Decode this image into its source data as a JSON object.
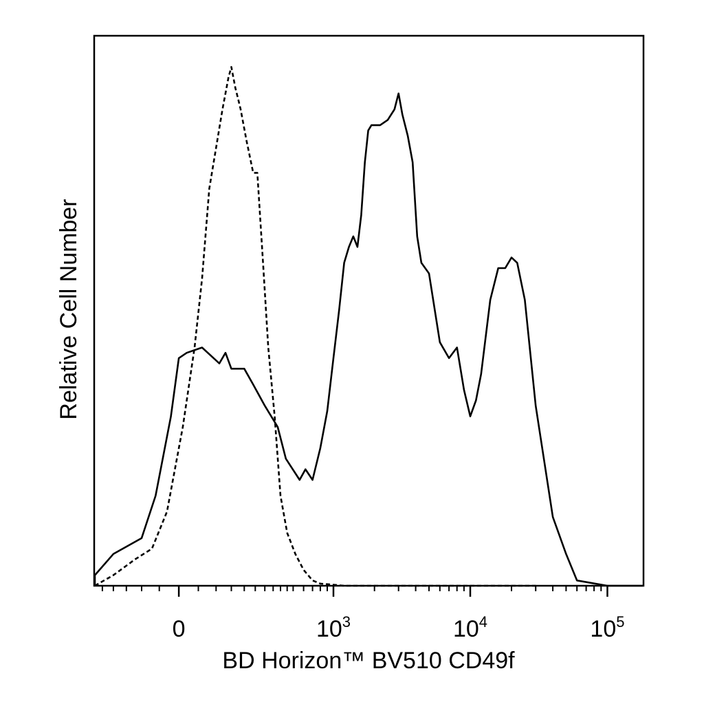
{
  "chart_data": {
    "type": "line",
    "xlabel": "BD Horizon™ BV510 CD49f",
    "ylabel": "Relative Cell Number",
    "x_scale": "biexponential",
    "x_ticks": [
      {
        "value": 0,
        "label": "0",
        "exp": ""
      },
      {
        "value": 1000,
        "label": "10",
        "exp": "3"
      },
      {
        "value": 10000,
        "label": "10",
        "exp": "4"
      },
      {
        "value": 100000,
        "label": "10",
        "exp": "5"
      }
    ],
    "ylim": [
      0,
      100
    ],
    "grid": false,
    "series": [
      {
        "style": "solid",
        "x": [
          -480,
          -300,
          -200,
          -100,
          -60,
          -20,
          0,
          20,
          60,
          110,
          130,
          150,
          200,
          240,
          300,
          380,
          440,
          560,
          620,
          700,
          800,
          900,
          1000,
          1100,
          1200,
          1300,
          1400,
          1500,
          1600,
          1700,
          1800,
          1900,
          2200,
          2500,
          2800,
          3000,
          3200,
          3500,
          3800,
          4100,
          4400,
          5000,
          6000,
          7000,
          8000,
          9000,
          10000,
          11000,
          12000,
          14000,
          16000,
          18000,
          20000,
          22000,
          25000,
          30000,
          40000,
          50000,
          60000,
          100000,
          250000
        ],
        "y": [
          0,
          2,
          6,
          9,
          17,
          32,
          43,
          44,
          45,
          42,
          44,
          41,
          41,
          38,
          34,
          30,
          24,
          20,
          22,
          20,
          26,
          33,
          43,
          52,
          61,
          64,
          66,
          64,
          70,
          80,
          86,
          87,
          87,
          88,
          90,
          93,
          89,
          85,
          80,
          66,
          61,
          59,
          46,
          43,
          45,
          37,
          32,
          35,
          40,
          54,
          60,
          60,
          62,
          61,
          54,
          34,
          13,
          6,
          1,
          0,
          0
        ]
      },
      {
        "style": "dashed",
        "x": [
          -480,
          -350,
          -200,
          -120,
          -70,
          -30,
          10,
          40,
          60,
          80,
          120,
          140,
          150,
          165,
          175,
          185,
          210,
          240,
          260,
          290,
          320,
          360,
          400,
          450,
          520,
          600,
          700,
          800,
          1000,
          1200,
          1500,
          2000,
          3000,
          5000,
          10000,
          30000
        ],
        "y": [
          0,
          0,
          2,
          5,
          7,
          14,
          30,
          45,
          58,
          75,
          90,
          96,
          98,
          94,
          92,
          90,
          84,
          78,
          78,
          61,
          45,
          32,
          17,
          10,
          6,
          3,
          1,
          0.4,
          0.2,
          0,
          0,
          0,
          0,
          0,
          0,
          0
        ]
      }
    ]
  }
}
